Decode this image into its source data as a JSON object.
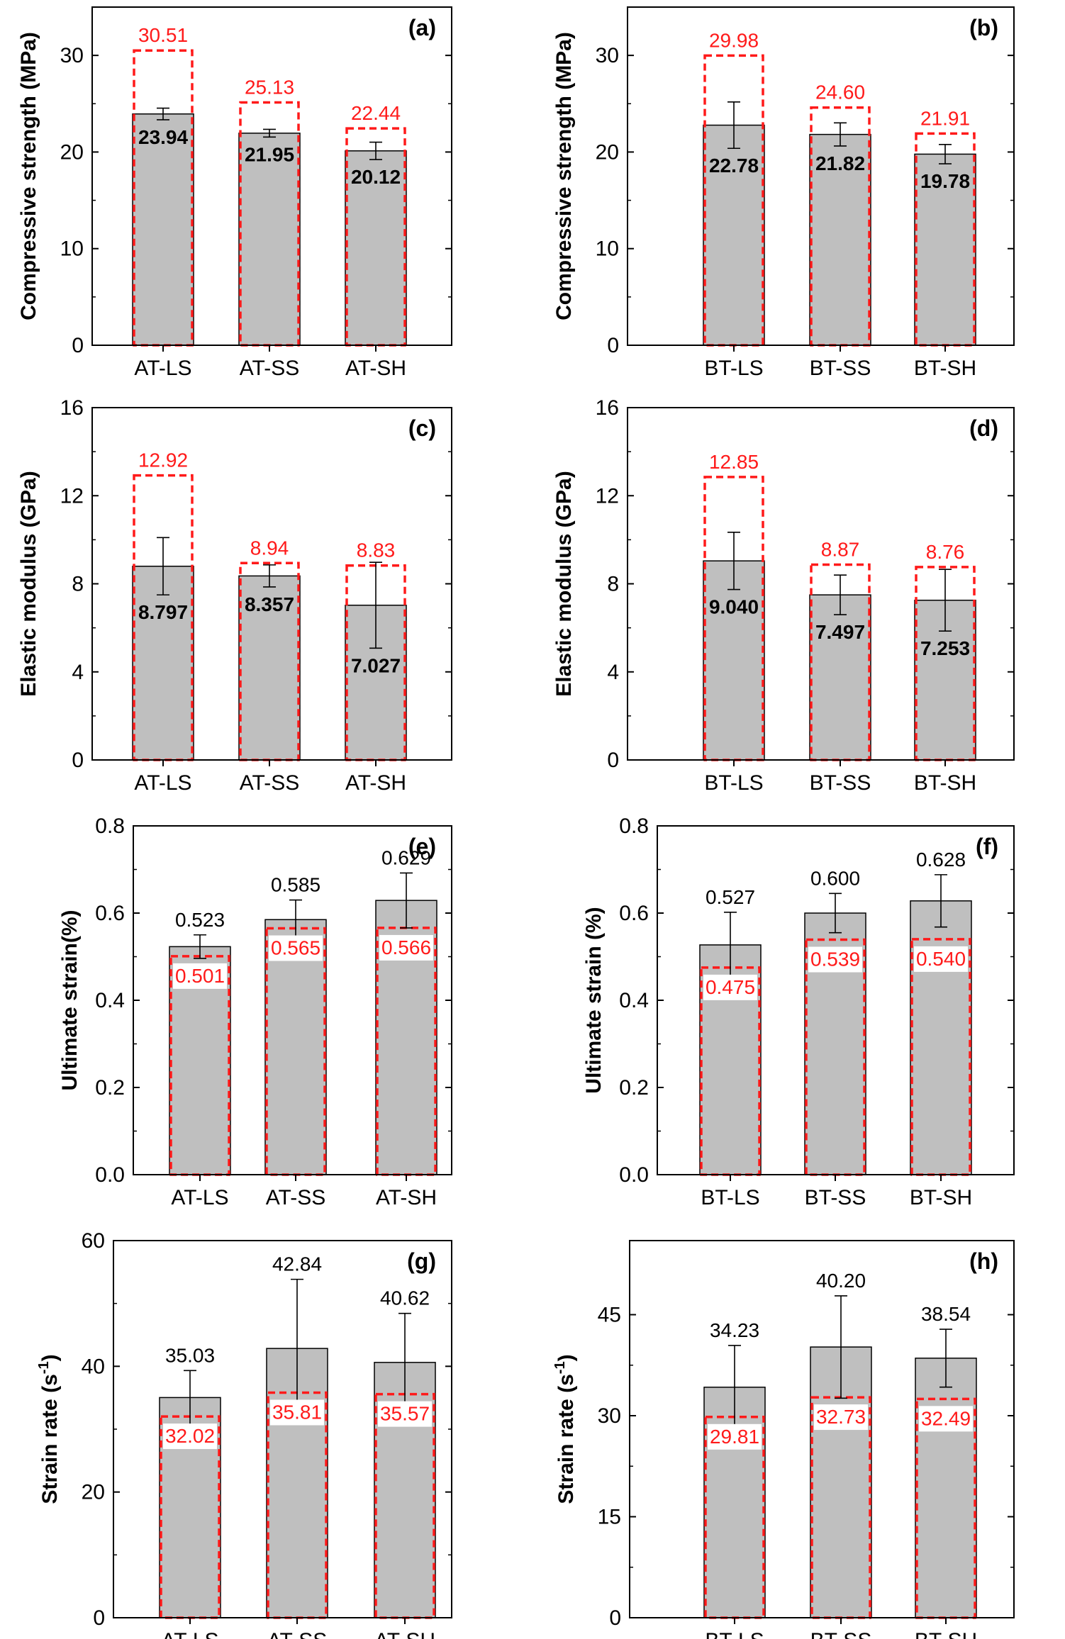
{
  "colors": {
    "bar_fill": "#bfbfbf",
    "bar_stroke": "#000000",
    "reference_stroke": "#ff1a1a",
    "reference_text": "#ff1a1a",
    "value_text": "#000000"
  },
  "chart_data": [
    {
      "type": "bar",
      "panel": "(a)",
      "ylabel": "Compressive strength (MPa)",
      "ylim": [
        0,
        35
      ],
      "yticks": [
        "0",
        "10",
        "20",
        "30"
      ],
      "ytick_values": [
        0,
        10,
        20,
        30
      ],
      "categories": [
        "AT-LS",
        "AT-SS",
        "AT-SH"
      ],
      "values": [
        23.94,
        21.95,
        20.12
      ],
      "value_labels": [
        "23.94",
        "21.95",
        "20.12"
      ],
      "errors": [
        0.6,
        0.4,
        0.9
      ],
      "reference_values": [
        30.51,
        25.13,
        22.44
      ],
      "reference_labels": [
        "30.51",
        "25.13",
        "22.44"
      ],
      "value_label_position": "inside"
    },
    {
      "type": "bar",
      "panel": "(b)",
      "ylabel": "Compressive strength (MPa)",
      "ylim": [
        0,
        35
      ],
      "yticks": [
        "0",
        "10",
        "20",
        "30"
      ],
      "ytick_values": [
        0,
        10,
        20,
        30
      ],
      "categories": [
        "BT-LS",
        "BT-SS",
        "BT-SH"
      ],
      "values": [
        22.78,
        21.82,
        19.78
      ],
      "value_labels": [
        "22.78",
        "21.82",
        "19.78"
      ],
      "errors": [
        2.4,
        1.2,
        1.0
      ],
      "reference_values": [
        29.98,
        24.6,
        21.91
      ],
      "reference_labels": [
        "29.98",
        "24.60",
        "21.91"
      ],
      "value_label_position": "inside"
    },
    {
      "type": "bar",
      "panel": "(c)",
      "ylabel": "Elastic modulus (GPa)",
      "ylim": [
        0,
        16
      ],
      "yticks": [
        "0",
        "4",
        "8",
        "12",
        "16"
      ],
      "ytick_values": [
        0,
        4,
        8,
        12,
        16
      ],
      "categories": [
        "AT-LS",
        "AT-SS",
        "AT-SH"
      ],
      "values": [
        8.797,
        8.357,
        7.027
      ],
      "value_labels": [
        "8.797",
        "8.357",
        "7.027"
      ],
      "errors": [
        1.3,
        0.5,
        1.95
      ],
      "reference_values": [
        12.92,
        8.94,
        8.83
      ],
      "reference_labels": [
        "12.92",
        "8.94",
        "8.83"
      ],
      "value_label_position": "inside"
    },
    {
      "type": "bar",
      "panel": "(d)",
      "ylabel": "Elastic modulus (GPa)",
      "ylim": [
        0,
        16
      ],
      "yticks": [
        "0",
        "4",
        "8",
        "12",
        "16"
      ],
      "ytick_values": [
        0,
        4,
        8,
        12,
        16
      ],
      "categories": [
        "BT-LS",
        "BT-SS",
        "BT-SH"
      ],
      "values": [
        9.04,
        7.497,
        7.253
      ],
      "value_labels": [
        "9.040",
        "7.497",
        "7.253"
      ],
      "errors": [
        1.3,
        0.9,
        1.4
      ],
      "reference_values": [
        12.85,
        8.87,
        8.76
      ],
      "reference_labels": [
        "12.85",
        "8.87",
        "8.76"
      ],
      "value_label_position": "inside"
    },
    {
      "type": "bar",
      "panel": "(e)",
      "ylabel": "Ultimate strain(%)",
      "ylim": [
        0,
        0.8
      ],
      "yticks": [
        "0.0",
        "0.2",
        "0.4",
        "0.6",
        "0.8"
      ],
      "ytick_values": [
        0,
        0.2,
        0.4,
        0.6,
        0.8
      ],
      "categories": [
        "AT-LS",
        "AT-SS",
        "AT-SH"
      ],
      "values": [
        0.523,
        0.585,
        0.629
      ],
      "value_labels": [
        "0.523",
        "0.585",
        "0.629"
      ],
      "errors": [
        0.027,
        0.045,
        0.063
      ],
      "reference_values": [
        0.501,
        0.565,
        0.566
      ],
      "reference_labels": [
        "0.501",
        "0.565",
        "0.566"
      ],
      "value_label_position": "top"
    },
    {
      "type": "bar",
      "panel": "(f)",
      "ylabel": "Ultimate strain (%)",
      "ylim": [
        0,
        0.8
      ],
      "yticks": [
        "0.0",
        "0.2",
        "0.4",
        "0.6",
        "0.8"
      ],
      "ytick_values": [
        0,
        0.2,
        0.4,
        0.6,
        0.8
      ],
      "categories": [
        "BT-LS",
        "BT-SS",
        "BT-SH"
      ],
      "values": [
        0.527,
        0.6,
        0.628
      ],
      "value_labels": [
        "0.527",
        "0.600",
        "0.628"
      ],
      "errors": [
        0.075,
        0.045,
        0.06
      ],
      "reference_values": [
        0.475,
        0.539,
        0.54
      ],
      "reference_labels": [
        "0.475",
        "0.539",
        "0.540"
      ],
      "value_label_position": "top"
    },
    {
      "type": "bar",
      "panel": "(g)",
      "ylabel": "Strain rate (s",
      "ylabel_superscript": "-1",
      "ylabel_suffix": ")",
      "ylim": [
        0,
        60
      ],
      "yticks": [
        "0",
        "20",
        "40",
        "60"
      ],
      "ytick_values": [
        0,
        20,
        40,
        60
      ],
      "categories": [
        "AT-LS",
        "AT-SS",
        "AT-SH"
      ],
      "values": [
        35.03,
        42.84,
        40.62
      ],
      "value_labels": [
        "35.03",
        "42.84",
        "40.62"
      ],
      "errors": [
        4.3,
        11.0,
        7.8
      ],
      "reference_values": [
        32.02,
        35.81,
        35.57
      ],
      "reference_labels": [
        "32.02",
        "35.81",
        "35.57"
      ],
      "value_label_position": "top"
    },
    {
      "type": "bar",
      "panel": "(h)",
      "ylabel": "Strain rate (s",
      "ylabel_superscript": "-1",
      "ylabel_suffix": ")",
      "ylim": [
        0,
        56
      ],
      "yticks": [
        "0",
        "15",
        "30",
        "45"
      ],
      "ytick_values": [
        0,
        15,
        30,
        45
      ],
      "categories": [
        "BT-LS",
        "BT-SS",
        "BT-SH"
      ],
      "values": [
        34.23,
        40.2,
        38.54
      ],
      "value_labels": [
        "34.23",
        "40.20",
        "38.54"
      ],
      "errors": [
        6.2,
        7.6,
        4.3
      ],
      "reference_values": [
        29.81,
        32.73,
        32.49
      ],
      "reference_labels": [
        "29.81",
        "32.73",
        "32.49"
      ],
      "value_label_position": "top"
    }
  ]
}
